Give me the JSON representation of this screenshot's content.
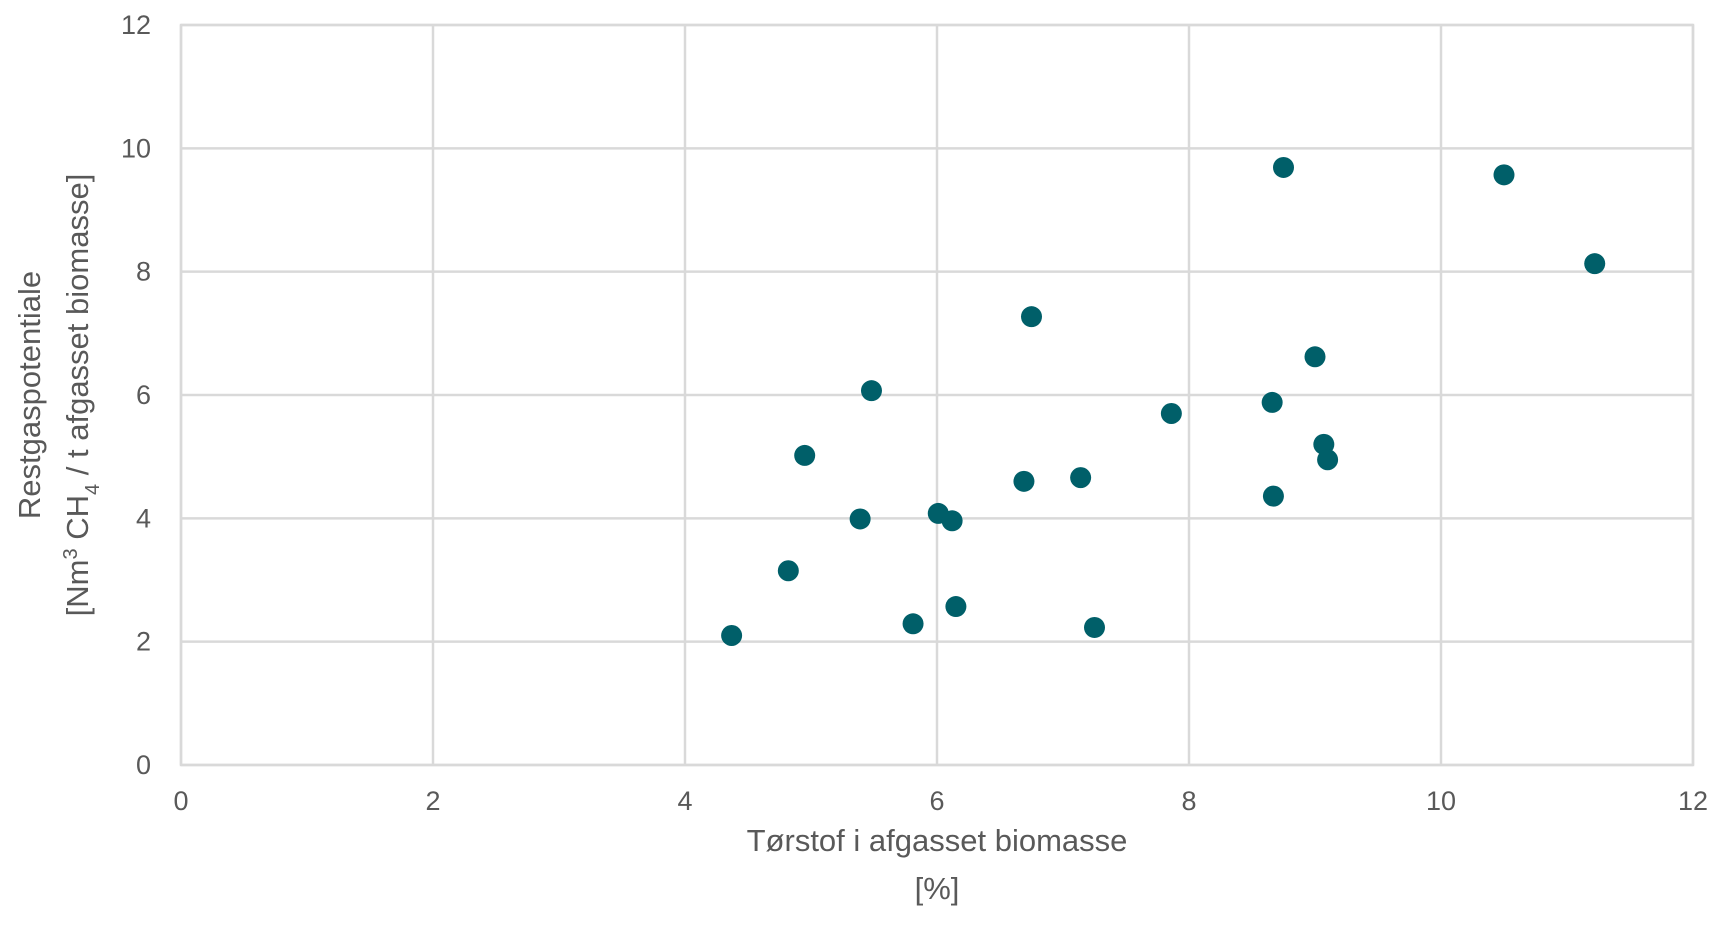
{
  "chart_data": {
    "type": "scatter",
    "xlabel_line1": "Tørstof i afgasset biomasse",
    "xlabel_line2": "[%]",
    "ylabel_line1": "Restgaspotentiale",
    "ylabel_line2_prefix": "[Nm",
    "ylabel_line2_sup": "3",
    "ylabel_line2_mid": " CH",
    "ylabel_line2_sub": "4",
    "ylabel_line2_suffix": " / t afgasset biomasse]",
    "xlim": [
      0,
      12
    ],
    "ylim": [
      0,
      12
    ],
    "xticks": [
      0,
      2,
      4,
      6,
      8,
      10,
      12
    ],
    "yticks": [
      0,
      2,
      4,
      6,
      8,
      10,
      12
    ],
    "grid": true,
    "marker_color": "#005f69",
    "series": [
      {
        "points": [
          {
            "x": 4.37,
            "y": 2.1
          },
          {
            "x": 4.82,
            "y": 3.15
          },
          {
            "x": 4.95,
            "y": 5.02
          },
          {
            "x": 5.39,
            "y": 3.99
          },
          {
            "x": 5.48,
            "y": 6.07
          },
          {
            "x": 5.81,
            "y": 2.29
          },
          {
            "x": 6.01,
            "y": 4.08
          },
          {
            "x": 6.12,
            "y": 3.96
          },
          {
            "x": 6.15,
            "y": 2.57
          },
          {
            "x": 6.69,
            "y": 4.6
          },
          {
            "x": 6.75,
            "y": 7.27
          },
          {
            "x": 7.14,
            "y": 4.66
          },
          {
            "x": 7.25,
            "y": 2.23
          },
          {
            "x": 7.86,
            "y": 5.7
          },
          {
            "x": 8.66,
            "y": 5.88
          },
          {
            "x": 8.67,
            "y": 4.36
          },
          {
            "x": 8.75,
            "y": 9.69
          },
          {
            "x": 9.0,
            "y": 6.62
          },
          {
            "x": 9.07,
            "y": 5.2
          },
          {
            "x": 9.1,
            "y": 4.95
          },
          {
            "x": 10.5,
            "y": 9.57
          },
          {
            "x": 11.22,
            "y": 8.13
          }
        ]
      }
    ]
  }
}
